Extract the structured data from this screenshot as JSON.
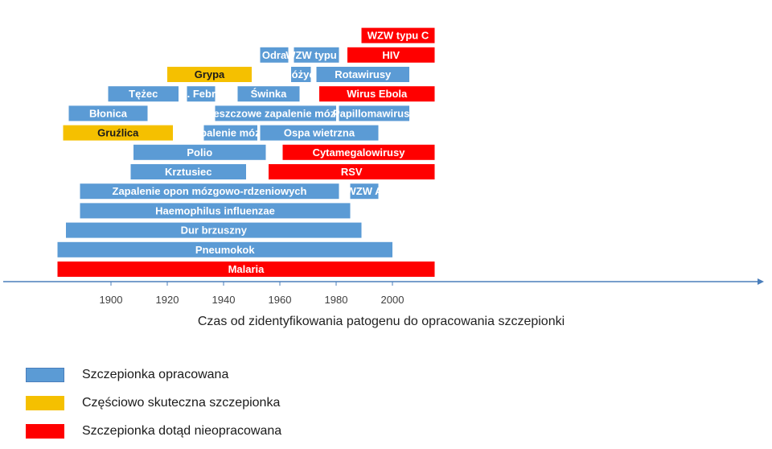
{
  "chart_data": {
    "type": "timeline",
    "title": "",
    "xlabel": "Czas od zidentyfikowania patogenu do opracowania szczepionki",
    "xlim": [
      1881,
      2015
    ],
    "xticks": [
      1900,
      1920,
      1940,
      1960,
      1980,
      2000
    ],
    "colors": {
      "developed": "#5b9bd5",
      "partial": "#f5c000",
      "none": "#ff0000"
    },
    "bars": [
      {
        "label": "Malaria",
        "start": 1881,
        "end": 2015,
        "status": "none",
        "row": 0
      },
      {
        "label": "Pneumokok",
        "start": 1881,
        "end": 2000,
        "status": "developed",
        "row": 1
      },
      {
        "label": "Dur brzuszny",
        "start": 1884,
        "end": 1989,
        "status": "developed",
        "row": 2
      },
      {
        "label": "Haemophilus influenzae",
        "start": 1889,
        "end": 1985,
        "status": "developed",
        "row": 3
      },
      {
        "label": "Zapalenie opon mózgowo-rdzeniowych",
        "start": 1889,
        "end": 1981,
        "status": "developed",
        "row": 4
      },
      {
        "label": "WZW A",
        "start": 1985,
        "end": 1995,
        "status": "developed",
        "row": 4
      },
      {
        "label": "Krztusiec",
        "start": 1907,
        "end": 1948,
        "status": "developed",
        "row": 5
      },
      {
        "label": "RSV",
        "start": 1956,
        "end": 2015,
        "status": "none",
        "row": 5
      },
      {
        "label": "Polio",
        "start": 1908,
        "end": 1955,
        "status": "developed",
        "row": 6
      },
      {
        "label": "Cytamegalowirusy",
        "start": 1961,
        "end": 2015,
        "status": "none",
        "row": 6
      },
      {
        "label": "Gruźlica",
        "start": 1883,
        "end": 1922,
        "status": "partial",
        "row": 7
      },
      {
        "label": "Zapalenie mózgu",
        "start": 1933,
        "end": 1952,
        "status": "developed",
        "row": 7
      },
      {
        "label": "Ospa wietrzna",
        "start": 1953,
        "end": 1995,
        "status": "developed",
        "row": 7
      },
      {
        "label": "Błonica",
        "start": 1885,
        "end": 1913,
        "status": "developed",
        "row": 8
      },
      {
        "label": "Kleszczowe zapalenie mózgu",
        "start": 1937,
        "end": 1980,
        "status": "developed",
        "row": 8
      },
      {
        "label": "Papillomawirusy",
        "start": 1981,
        "end": 2006,
        "status": "developed",
        "row": 8
      },
      {
        "label": "Tężec",
        "start": 1899,
        "end": 1924,
        "status": "developed",
        "row": 9
      },
      {
        "label": "Ż. Febra",
        "start": 1927,
        "end": 1937,
        "status": "developed",
        "row": 9
      },
      {
        "label": "Świnka",
        "start": 1945,
        "end": 1967,
        "status": "developed",
        "row": 9
      },
      {
        "label": "Wirus Ebola",
        "start": 1974,
        "end": 2015,
        "status": "none",
        "row": 9
      },
      {
        "label": "Grypa",
        "start": 1920,
        "end": 1950,
        "status": "partial",
        "row": 10
      },
      {
        "label": "Różyc.",
        "start": 1964,
        "end": 1971,
        "status": "developed",
        "row": 10
      },
      {
        "label": "Rotawirusy",
        "start": 1973,
        "end": 2006,
        "status": "developed",
        "row": 10
      },
      {
        "label": "Odra",
        "start": 1953,
        "end": 1963,
        "status": "developed",
        "row": 11
      },
      {
        "label": "WZW typu B",
        "start": 1965,
        "end": 1981,
        "status": "developed",
        "row": 11
      },
      {
        "label": "HIV",
        "start": 1984,
        "end": 2015,
        "status": "none",
        "row": 11
      },
      {
        "label": "WZW typu C",
        "start": 1989,
        "end": 2015,
        "status": "none",
        "row": 12
      }
    ],
    "legend": [
      {
        "label": "Szczepionka opracowana",
        "status": "developed"
      },
      {
        "label": "Częściowo skuteczna szczepionka",
        "status": "partial"
      },
      {
        "label": "Szczepionka dotąd nieopracowana",
        "status": "none"
      }
    ]
  }
}
